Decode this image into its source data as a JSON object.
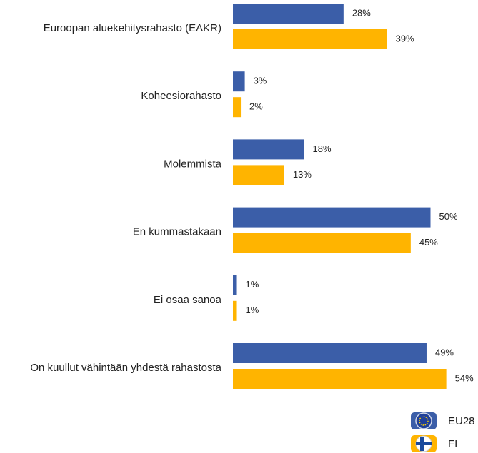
{
  "chart_data": {
    "type": "bar",
    "orientation": "horizontal",
    "categories": [
      "Euroopan aluekehitysrahasto (EAKR)",
      "Koheesiorahasto",
      "Molemmista",
      "En kummastakaan",
      "Ei osaa sanoa",
      "On kuullut vähintään yhdestä rahastosta"
    ],
    "series": [
      {
        "name": "EU28",
        "color": "#3b5ea8",
        "values": [
          28,
          3,
          18,
          50,
          1,
          49
        ],
        "value_labels": [
          "28%",
          "3%",
          "18%",
          "50%",
          "1%",
          "49%"
        ]
      },
      {
        "name": "FI",
        "color": "#ffb400",
        "values": [
          39,
          2,
          13,
          45,
          1,
          54
        ],
        "value_labels": [
          "39%",
          "2%",
          "13%",
          "45%",
          "1%",
          "54%"
        ]
      }
    ],
    "legend": "bottom-right"
  }
}
